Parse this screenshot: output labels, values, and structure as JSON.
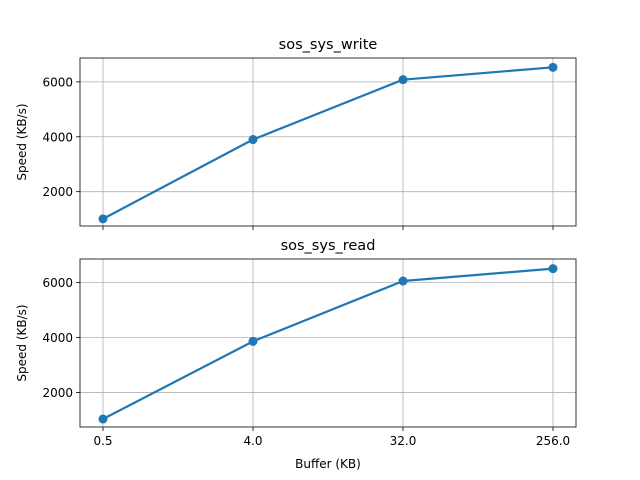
{
  "chart_data": [
    {
      "type": "line",
      "title": "sos_sys_write",
      "xlabel": "",
      "ylabel": "Speed (KB/s)",
      "x_scale": "log2",
      "x": [
        0.5,
        4.0,
        32.0,
        256.0
      ],
      "xticks": [
        "0.5",
        "4.0",
        "32.0",
        "256.0"
      ],
      "xtick_labels_shown": false,
      "ylim": [
        750,
        6870
      ],
      "yticks": [
        2000,
        4000,
        6000
      ],
      "grid": true,
      "series": [
        {
          "values": [
            1010,
            3900,
            6080,
            6530
          ],
          "color": "#1f77b4",
          "marker": "circle"
        }
      ]
    },
    {
      "type": "line",
      "title": "sos_sys_read",
      "xlabel": "Buffer (KB)",
      "ylabel": "Speed (KB/s)",
      "x_scale": "log2",
      "x": [
        0.5,
        4.0,
        32.0,
        256.0
      ],
      "xticks": [
        "0.5",
        "4.0",
        "32.0",
        "256.0"
      ],
      "xtick_labels_shown": true,
      "ylim": [
        750,
        6850
      ],
      "yticks": [
        2000,
        4000,
        6000
      ],
      "grid": true,
      "series": [
        {
          "values": [
            1040,
            3860,
            6050,
            6500
          ],
          "color": "#1f77b4",
          "marker": "circle"
        }
      ]
    }
  ]
}
